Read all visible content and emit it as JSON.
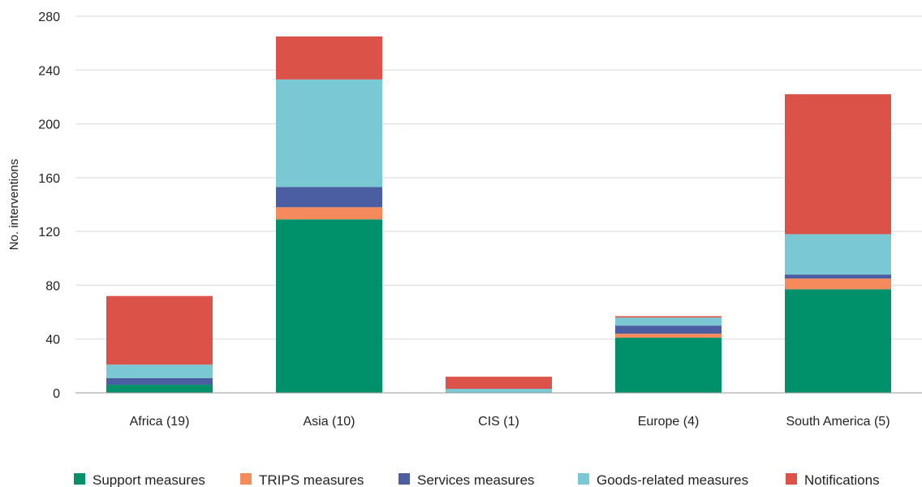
{
  "chart_data": {
    "type": "bar",
    "stacked": true,
    "title": "",
    "xlabel": "",
    "ylabel": "No. interventions",
    "ylim": [
      0,
      280
    ],
    "yticks": [
      0,
      40,
      80,
      120,
      160,
      200,
      240,
      280
    ],
    "grid": true,
    "legend_position": "bottom",
    "categories": [
      "Africa (19)",
      "Asia (10)",
      "CIS (1)",
      "Europe (4)",
      "South America (5)"
    ],
    "series": [
      {
        "name": "Support measures",
        "color": "#00916a",
        "values": [
          6,
          129,
          0,
          41,
          77
        ]
      },
      {
        "name": "TRIPS measures",
        "color": "#f58a5c",
        "values": [
          0,
          9,
          0,
          3,
          8
        ]
      },
      {
        "name": "Services measures",
        "color": "#4b5ea1",
        "values": [
          5,
          15,
          0,
          6,
          3
        ]
      },
      {
        "name": "Goods-related measures",
        "color": "#79c8d3",
        "values": [
          10,
          80,
          3,
          6,
          30
        ]
      },
      {
        "name": "Notifications",
        "color": "#db5248",
        "values": [
          51,
          32,
          9,
          1,
          104
        ]
      }
    ]
  }
}
